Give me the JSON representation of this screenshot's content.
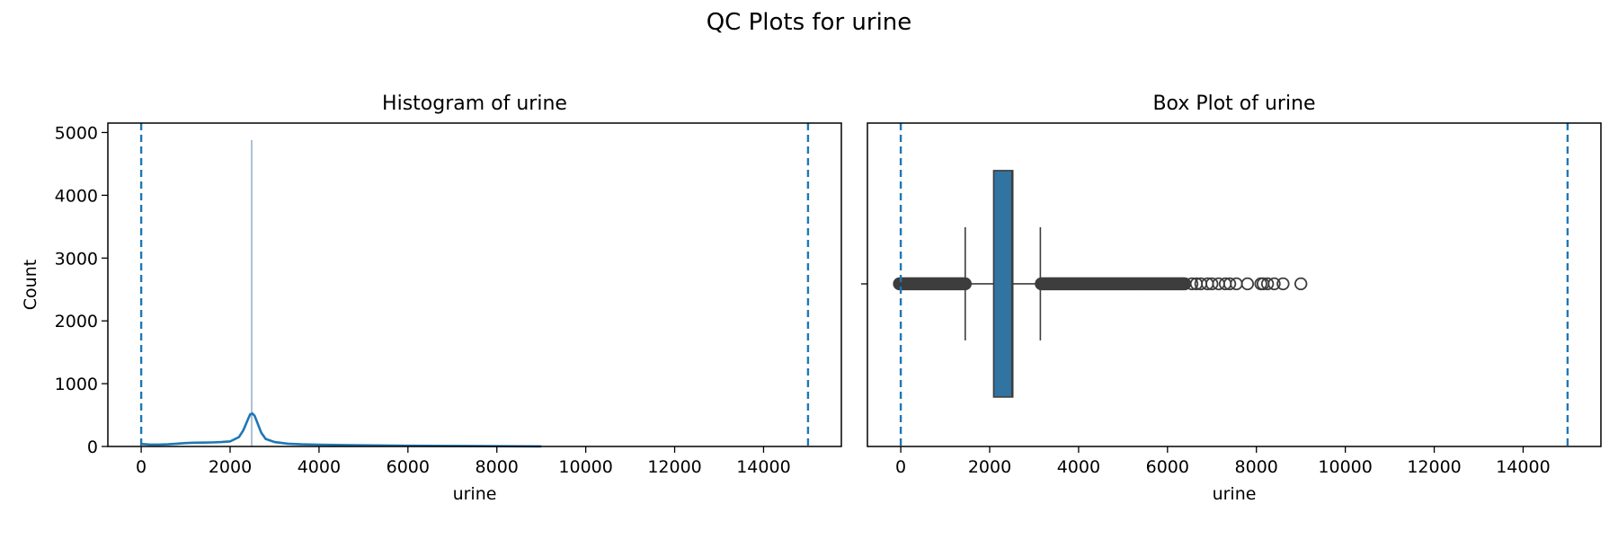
{
  "figure": {
    "title": "QC Plots for urine"
  },
  "chart_data": [
    {
      "type": "histogram",
      "title": "Histogram of urine",
      "xlabel": "urine",
      "ylabel": "Count",
      "xlim": [
        -750,
        15750
      ],
      "ylim": [
        0,
        5150
      ],
      "xticks": [
        0,
        2000,
        4000,
        6000,
        8000,
        10000,
        12000,
        14000
      ],
      "yticks": [
        0,
        1000,
        2000,
        3000,
        4000,
        5000
      ],
      "grid": false,
      "bars": [
        {
          "x0": 2470,
          "x1": 2500,
          "count": 4880
        }
      ],
      "kde": {
        "x": [
          0,
          200,
          400,
          600,
          800,
          1000,
          1200,
          1400,
          1600,
          1800,
          2000,
          2200,
          2300,
          2400,
          2450,
          2500,
          2550,
          2600,
          2700,
          2800,
          3000,
          3300,
          3600,
          4000,
          5000,
          6000,
          7000,
          8000,
          9000
        ],
        "y": [
          40,
          30,
          30,
          35,
          45,
          55,
          60,
          62,
          65,
          70,
          80,
          150,
          260,
          430,
          510,
          525,
          490,
          400,
          220,
          120,
          70,
          45,
          35,
          28,
          18,
          12,
          8,
          5,
          2
        ]
      },
      "vlines": [
        0,
        15000
      ],
      "colors": {
        "bar": "#7f9fbf",
        "kde": "#1f77b4",
        "vline": "#1f77b4"
      }
    },
    {
      "type": "box",
      "title": "Box Plot of urine",
      "xlabel": "urine",
      "xlim": [
        -750,
        15750
      ],
      "xticks": [
        0,
        2000,
        4000,
        6000,
        8000,
        10000,
        12000,
        14000
      ],
      "grid": false,
      "box": {
        "q1": 2090,
        "median": 2500,
        "q3": 2520,
        "whisker_low": 1450,
        "whisker_high": 3140
      },
      "outliers_dense_ranges": [
        [
          -30,
          1460
        ],
        [
          3160,
          6400
        ]
      ],
      "outliers": [
        6550,
        6650,
        6750,
        6900,
        7000,
        7150,
        7300,
        7400,
        7550,
        7800,
        8100,
        8150,
        8250,
        8400,
        8600,
        9000
      ],
      "vlines": [
        0,
        15000
      ],
      "colors": {
        "box": "#3274a1",
        "vline": "#1f77b4",
        "line": "#3d3d3d"
      }
    }
  ]
}
